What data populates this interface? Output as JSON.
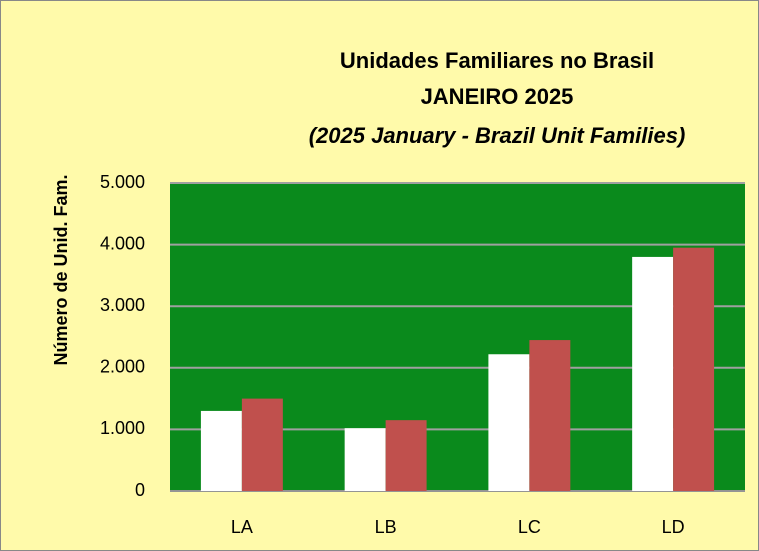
{
  "chart_data": {
    "type": "bar",
    "title": "Unidades Familiares no Brasil",
    "subtitle": "JANEIRO 2025",
    "subtitle2": "(2025 January - Brazil Unit Families)",
    "y_label": "Número de Unid. Fam.",
    "categories": [
      "LA",
      "LB",
      "LC",
      "LD"
    ],
    "series": [
      {
        "color": "#ffffff",
        "values": [
          1300,
          1020,
          2220,
          3800
        ]
      },
      {
        "color": "#c0504d",
        "values": [
          1500,
          1150,
          2450,
          3950
        ]
      }
    ],
    "ylim": [
      0,
      5000
    ],
    "yticks": [
      0,
      {
        "value": 1000,
        "label": "1.000"
      },
      {
        "value": 2000,
        "label": "2.000"
      },
      {
        "value": 3000,
        "label": "3.000"
      },
      {
        "value": 4000,
        "label": "4.000"
      },
      {
        "value": 5000,
        "label": "5.000"
      }
    ],
    "grid": true,
    "plot_color": "#0a8a1c"
  }
}
